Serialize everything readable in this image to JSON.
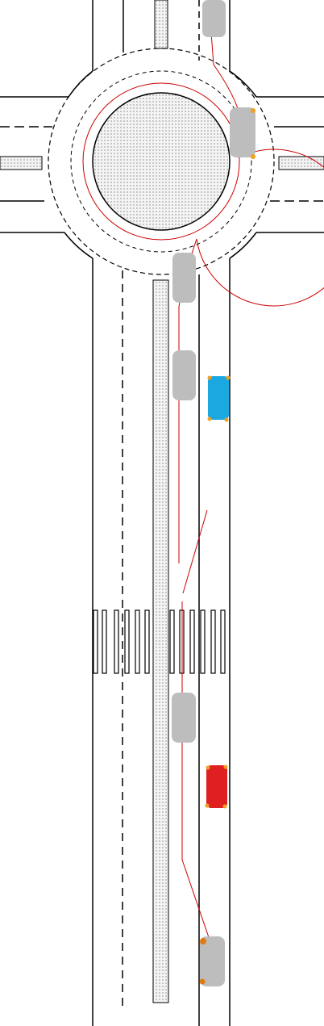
{
  "diagram": {
    "kind": "traffic-scene",
    "colors": {
      "background": "#ffffff",
      "road_edge": "#000000",
      "island_fill": "#f4f4f4",
      "island_dots": "#555555",
      "path": "#cc0000",
      "grey_car": "#bdbdbd",
      "blue_car": "#1ba8e0",
      "red_car": "#e02020",
      "indicator": "#f0a020",
      "indicator_dark": "#e07a10"
    },
    "vehicles": [
      {
        "id": "grey-car-top",
        "color_key": "grey_car"
      },
      {
        "id": "grey-car-roundabout-exit",
        "color_key": "grey_car"
      },
      {
        "id": "grey-car-roundabout-entry",
        "color_key": "grey_car"
      },
      {
        "id": "grey-car-upper-lane",
        "color_key": "grey_car"
      },
      {
        "id": "blue-car-parked",
        "color_key": "blue_car"
      },
      {
        "id": "grey-car-lower-lane",
        "color_key": "grey_car"
      },
      {
        "id": "red-car-parked",
        "color_key": "red_car"
      },
      {
        "id": "grey-car-bottom",
        "color_key": "grey_car"
      }
    ]
  }
}
